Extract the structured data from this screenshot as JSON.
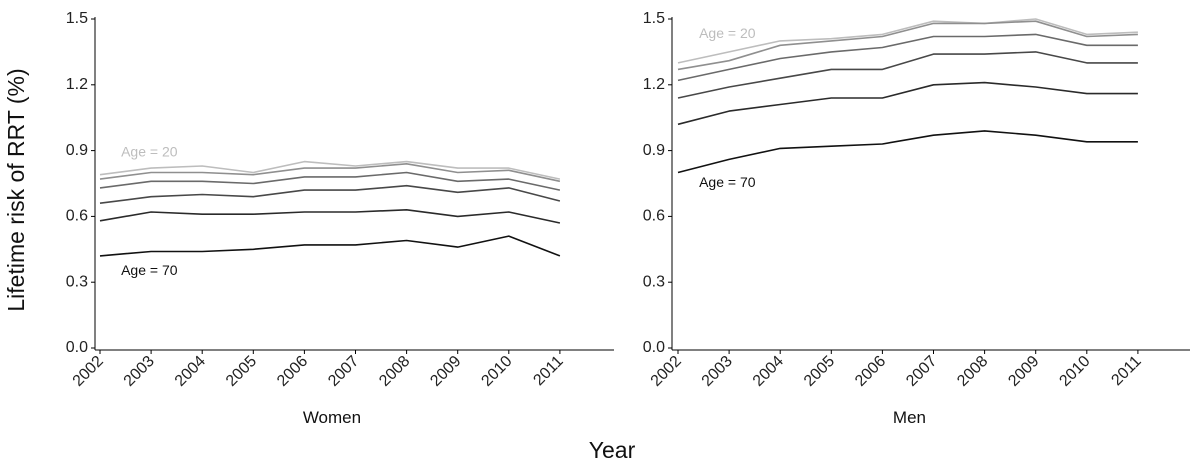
{
  "chart_data": {
    "type": "line",
    "ylabel": "Lifetime risk of RRT (%)",
    "xlabel": "Year",
    "ylim": [
      0.0,
      1.5
    ],
    "yticks": [
      "0.0",
      "0.3",
      "0.6",
      "0.9",
      "1.2",
      "1.5"
    ],
    "grid": false,
    "legend": "none",
    "series_colors": [
      "#bdbdbd",
      "#8f8f8f",
      "#6a6a6a",
      "#484848",
      "#2a2a2a",
      "#111111"
    ],
    "panels": [
      {
        "label": "Women",
        "categories": [
          "2002",
          "2003",
          "2004",
          "2005",
          "2006",
          "2007",
          "2008",
          "2009",
          "2010",
          "2011"
        ],
        "annotations": [
          {
            "text": "Age = 20",
            "color": "#bdbdbd",
            "x": "2003",
            "y": 0.89
          },
          {
            "text": "Age = 70",
            "color": "#111111",
            "x": "2003",
            "y": 0.35
          }
        ],
        "series": [
          {
            "values": [
              0.79,
              0.82,
              0.83,
              0.8,
              0.85,
              0.83,
              0.85,
              0.82,
              0.82,
              0.77
            ]
          },
          {
            "values": [
              0.77,
              0.8,
              0.8,
              0.79,
              0.82,
              0.82,
              0.84,
              0.8,
              0.81,
              0.76
            ]
          },
          {
            "values": [
              0.73,
              0.76,
              0.76,
              0.75,
              0.78,
              0.78,
              0.8,
              0.76,
              0.77,
              0.72
            ]
          },
          {
            "values": [
              0.66,
              0.69,
              0.7,
              0.69,
              0.72,
              0.72,
              0.74,
              0.71,
              0.73,
              0.67
            ]
          },
          {
            "values": [
              0.58,
              0.62,
              0.61,
              0.61,
              0.62,
              0.62,
              0.63,
              0.6,
              0.62,
              0.57
            ]
          },
          {
            "values": [
              0.42,
              0.44,
              0.44,
              0.45,
              0.47,
              0.47,
              0.49,
              0.46,
              0.51,
              0.42
            ]
          }
        ]
      },
      {
        "label": "Men",
        "categories": [
          "2002",
          "2003",
          "2004",
          "2005",
          "2006",
          "2007",
          "2008",
          "2009",
          "2010",
          "2011"
        ],
        "annotations": [
          {
            "text": "Age = 20",
            "color": "#bdbdbd",
            "x": "2003",
            "y": 1.43
          },
          {
            "text": "Age = 70",
            "color": "#111111",
            "x": "2003",
            "y": 0.75
          }
        ],
        "series": [
          {
            "values": [
              1.3,
              1.35,
              1.4,
              1.41,
              1.43,
              1.49,
              1.48,
              1.5,
              1.43,
              1.44
            ]
          },
          {
            "values": [
              1.27,
              1.31,
              1.38,
              1.4,
              1.42,
              1.48,
              1.48,
              1.49,
              1.42,
              1.43
            ]
          },
          {
            "values": [
              1.22,
              1.27,
              1.32,
              1.35,
              1.37,
              1.42,
              1.42,
              1.43,
              1.38,
              1.38
            ]
          },
          {
            "values": [
              1.14,
              1.19,
              1.23,
              1.27,
              1.27,
              1.34,
              1.34,
              1.35,
              1.3,
              1.3
            ]
          },
          {
            "values": [
              1.02,
              1.08,
              1.11,
              1.14,
              1.14,
              1.2,
              1.21,
              1.19,
              1.16,
              1.16
            ]
          },
          {
            "values": [
              0.8,
              0.86,
              0.91,
              0.92,
              0.93,
              0.97,
              0.99,
              0.97,
              0.94,
              0.94
            ]
          }
        ]
      }
    ]
  }
}
